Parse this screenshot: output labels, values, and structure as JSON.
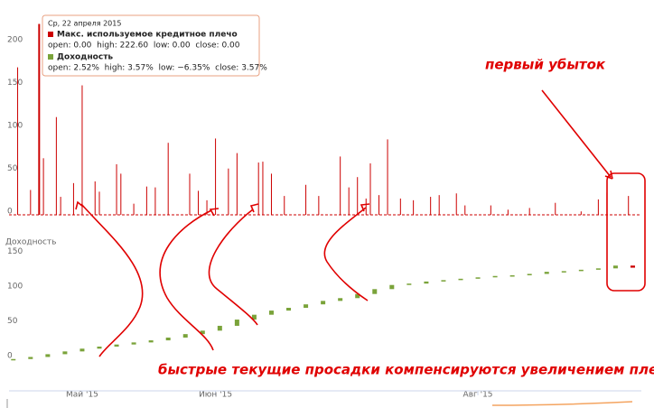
{
  "chart_data": [
    {
      "type": "bar",
      "name": "Макс. используемое кредитное плечо",
      "color": "#cc0000",
      "x": [
        106,
        109,
        111,
        112,
        115,
        116,
        119,
        121,
        124,
        125,
        129,
        130,
        133,
        136,
        138,
        141,
        146,
        148,
        150,
        152,
        155,
        157,
        162,
        163,
        165,
        168,
        173,
        176,
        181,
        183,
        185,
        187,
        188,
        190,
        192,
        195,
        198,
        202,
        204,
        208,
        210,
        216,
        220,
        225,
        231,
        237,
        241,
        243,
        248
      ],
      "values": [
        172,
        29,
        222.6,
        66,
        114,
        21,
        37,
        151,
        39,
        27,
        59,
        48,
        13,
        33,
        32,
        84,
        48,
        28,
        17,
        89,
        54,
        72,
        61,
        62,
        48,
        22,
        35,
        22,
        68,
        32,
        44,
        19,
        60,
        23,
        88,
        19,
        17,
        21,
        23,
        25,
        11,
        11,
        6,
        8,
        14,
        4,
        18,
        26,
        22
      ],
      "xlim": [
        104,
        251
      ],
      "ylim": [
        0,
        230
      ],
      "yticks": [
        0,
        50,
        100,
        150,
        200
      ]
    },
    {
      "type": "candlestick",
      "name": "Доходность",
      "title": "Доходность",
      "color": "#7aa33a",
      "down_color": "#cc0000",
      "x": [
        105,
        109,
        113,
        117,
        121,
        125,
        129,
        133,
        137,
        141,
        145,
        149,
        153,
        157,
        161,
        165,
        169,
        173,
        177,
        181,
        185,
        189,
        193,
        197,
        201,
        205,
        209,
        213,
        217,
        221,
        225,
        229,
        233,
        237,
        241,
        245,
        249
      ],
      "values": [
        0,
        3,
        7,
        11,
        15,
        18,
        21,
        24,
        27,
        31,
        36,
        41,
        48,
        57,
        64,
        70,
        74,
        79,
        84,
        88,
        94,
        101,
        107,
        109,
        112,
        114,
        116,
        118,
        120,
        121,
        123,
        126,
        127,
        129,
        131,
        135,
        132
      ],
      "xlim": [
        104,
        251
      ],
      "ylim": [
        -29,
        164
      ],
      "yticks": [
        0,
        50,
        100,
        150
      ],
      "xticks": [
        {
          "value": 121,
          "label": "Май '15"
        },
        {
          "value": 152,
          "label": "Июн '15"
        },
        {
          "value": 213,
          "label": "Авг '15"
        }
      ]
    }
  ],
  "tooltip": {
    "date": "Ср, 22 апреля 2015",
    "rows": [
      {
        "name": "Макс. используемое кредитное плечо",
        "stats": "open: 0.00  high: 222.60  low: 0.00  close: 0.00"
      },
      {
        "name": "Доходность",
        "stats": "open: 2.52%  high: 3.57%  low: −6.35%  close: 3.57%"
      }
    ]
  },
  "annotations": [
    "первый убыток",
    "быстрые текущие просадки компенсируются увеличением плеча"
  ]
}
